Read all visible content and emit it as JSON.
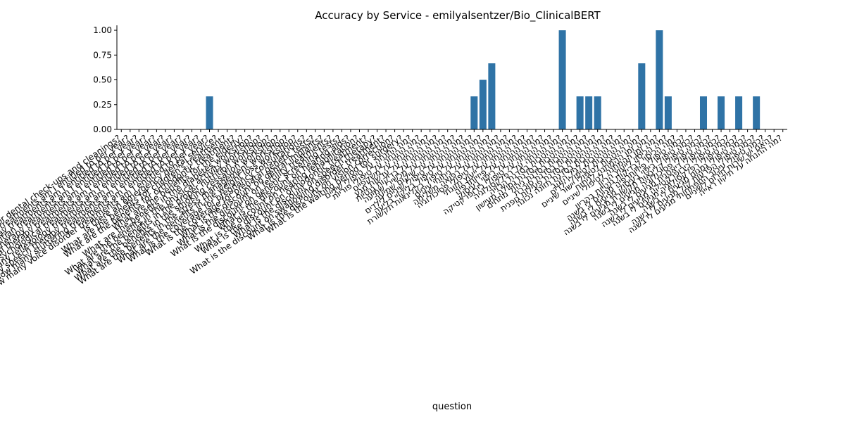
{
  "chart_data": {
    "type": "bar",
    "title": "Accuracy by Service - emilyalsentzer/Bio_ClinicalBERT",
    "xlabel": "question",
    "ylabel": "",
    "ylim": [
      0,
      1.05
    ],
    "yticks": [
      "0.00",
      "0.25",
      "0.50",
      "0.75",
      "1.00"
    ],
    "grid": false,
    "colors": {
      "bar": "#2f73a6"
    },
    "categories": [
      "How long is the wait time for dental check-ups and cleanings?",
      "How many chiropractic treatments am I entitled to per year?",
      "How many developmental delay treatments am I entitled to per year?",
      "How many dietitian treatments am I entitled to per year?",
      "How many occupational therapy treatments am I entitled to per year?",
      "How many physical therapy treatments am I entitled to per year?",
      "How many psychological treatments am I entitled to per year?",
      "How many reflexology treatments am I entitled to per year?",
      "How many speech therapy treatments am I entitled to per year?",
      "How many stuttering treatments am I entitled to per year?",
      "How many voice disorder treatments am I entitled to per year?",
      "Is there an emergency dental service?",
      "What are the benefits for children's treatment?",
      "What are the benefits for orthodontic treatment?",
      "What are the benefits for the elderly?",
      "What are the benefits in the diabetes workshop?",
      "What are the benefits in the physical activity workshop?",
      "What are the benefits in the proper nutrition workshop?",
      "What are the benefits in the smoking cessation workshop?",
      "What are the benefits in the stress management workshop?",
      "What are the benefits in the weight loss workshop?",
      "What is the coverage for pregnancy consultations?",
      "What is the coverage for prenatal genetic tests?",
      "What is the discount on dental implants?",
      "What is the discount on fertility treatments?",
      "What is the discount on genetic screening tests?",
      "What is the discount on hearing aids?",
      "What is the discount on hearing rehabilitation?",
      "What is the discount on orthodontic treatment?",
      "What is the discount on speech therapy?",
      "What is the discount on swallowing disorder treatment?",
      "What is the discount on vision correction?",
      "What is the waiting period for surgery?",
      "מה ההנחה על טיפולי שיניים?",
      "מה ההנחה על טיפולי פוריות?",
      "מה ההנחה על משקפיים?",
      "מה ההנחה על עדשות מגע?",
      "מה ההנחה על בדיקות גנטיות?",
      "מה ההנחה על מכשירי שמיעה?",
      "מה ההנחה על שיקום שמיעה?",
      "מה ההנחה על טיפולי שיניים לילדים?",
      "מה ההנחה על טיפול בליקויי בליעה?",
      "מה ההנחה על טיפול בקלינאות תקשורת?",
      "מה ההנחה על ניתוחי עיניים?",
      "מה ההנחה על רפואה משלימה?",
      "מה ההנחה על טיפולי פסיכולוגיה?",
      "מה ההנחה על ייעוץ תזונתי?",
      "מה ההנחה על פיזיותרפיה?",
      "מה ההנחה על ריפוי בעיסוק?",
      "מה ההנחה על טיפולי כירופרקטיקה?",
      "מה ההנחה על רפלקסולוגיה?",
      "מה ההטבות בסדנת הרזיה?",
      "מה ההטבות בסדנת גמילה מעישון?",
      "מה ההטבות בסדנת ניהול מתחים?",
      "מה ההטבות בסדנת סוכרת?",
      "מה ההטבות בסדנת פעילות גופנית?",
      "מה ההטבות בסדנת תזונה נכונה?",
      "מה ההטבות לגיל הזהב?",
      "מה ההטבות לטיפולי ילדים?",
      "מה ההטבות לטיפולי יישור שיניים?",
      "מה זמן ההמתנה לניתוח?",
      "מה זמן ההמתנה לטיפולי שיניים?",
      "מה הכיסוי לייעוץ הריון?",
      "מה הכיסוי לבדיקות גנטיות בהריון?",
      "כמה טיפולי פיזיותרפיה מגיעים לי בשנה?",
      "כמה טיפולי ריפוי בעיסוק מגיעים לי בשנה?",
      "כמה טיפולי קלינאות תקשורת מגיעים לי בשנה?",
      "כמה טיפולי פסיכולוגיה מגיעים לי בשנה?",
      "כמה טיפולי דיאטנית מגיעים לי בשנה?",
      "כמה טיפולי כירופרקטיקה מגיעים לי בשנה?",
      "כמה טיפולי רפלקסולוגיה מגיעים לי בשנה?",
      "כמה טיפולי גמגום מגיעים לי בשנה?",
      "כמה טיפולי הפרעות קול מגיעים לי בשנה?",
      "כמה טיפולי עיכוב התפתחותי מגיעים לי בשנה?",
      "האם יש שירות חירום לשיניים?",
      "מה ההנחה על תיקון ראייה?"
    ],
    "values": [
      0,
      0,
      0,
      0,
      0,
      0,
      0,
      0,
      0,
      0,
      0.3333,
      0,
      0,
      0,
      0,
      0,
      0,
      0,
      0,
      0,
      0,
      0,
      0,
      0,
      0,
      0,
      0,
      0,
      0,
      0,
      0,
      0,
      0,
      0,
      0,
      0,
      0,
      0,
      0,
      0,
      0.3333,
      0.5,
      0.6667,
      0,
      0,
      0,
      0,
      0,
      0,
      0,
      1.0,
      0,
      0.3333,
      0.3333,
      0.3333,
      0,
      0,
      0,
      0,
      0.6667,
      0,
      1.0,
      0.3333,
      0,
      0,
      0,
      0.3333,
      0,
      0.3333,
      0,
      0.3333,
      0,
      0.3333,
      0,
      0,
      0
    ]
  }
}
